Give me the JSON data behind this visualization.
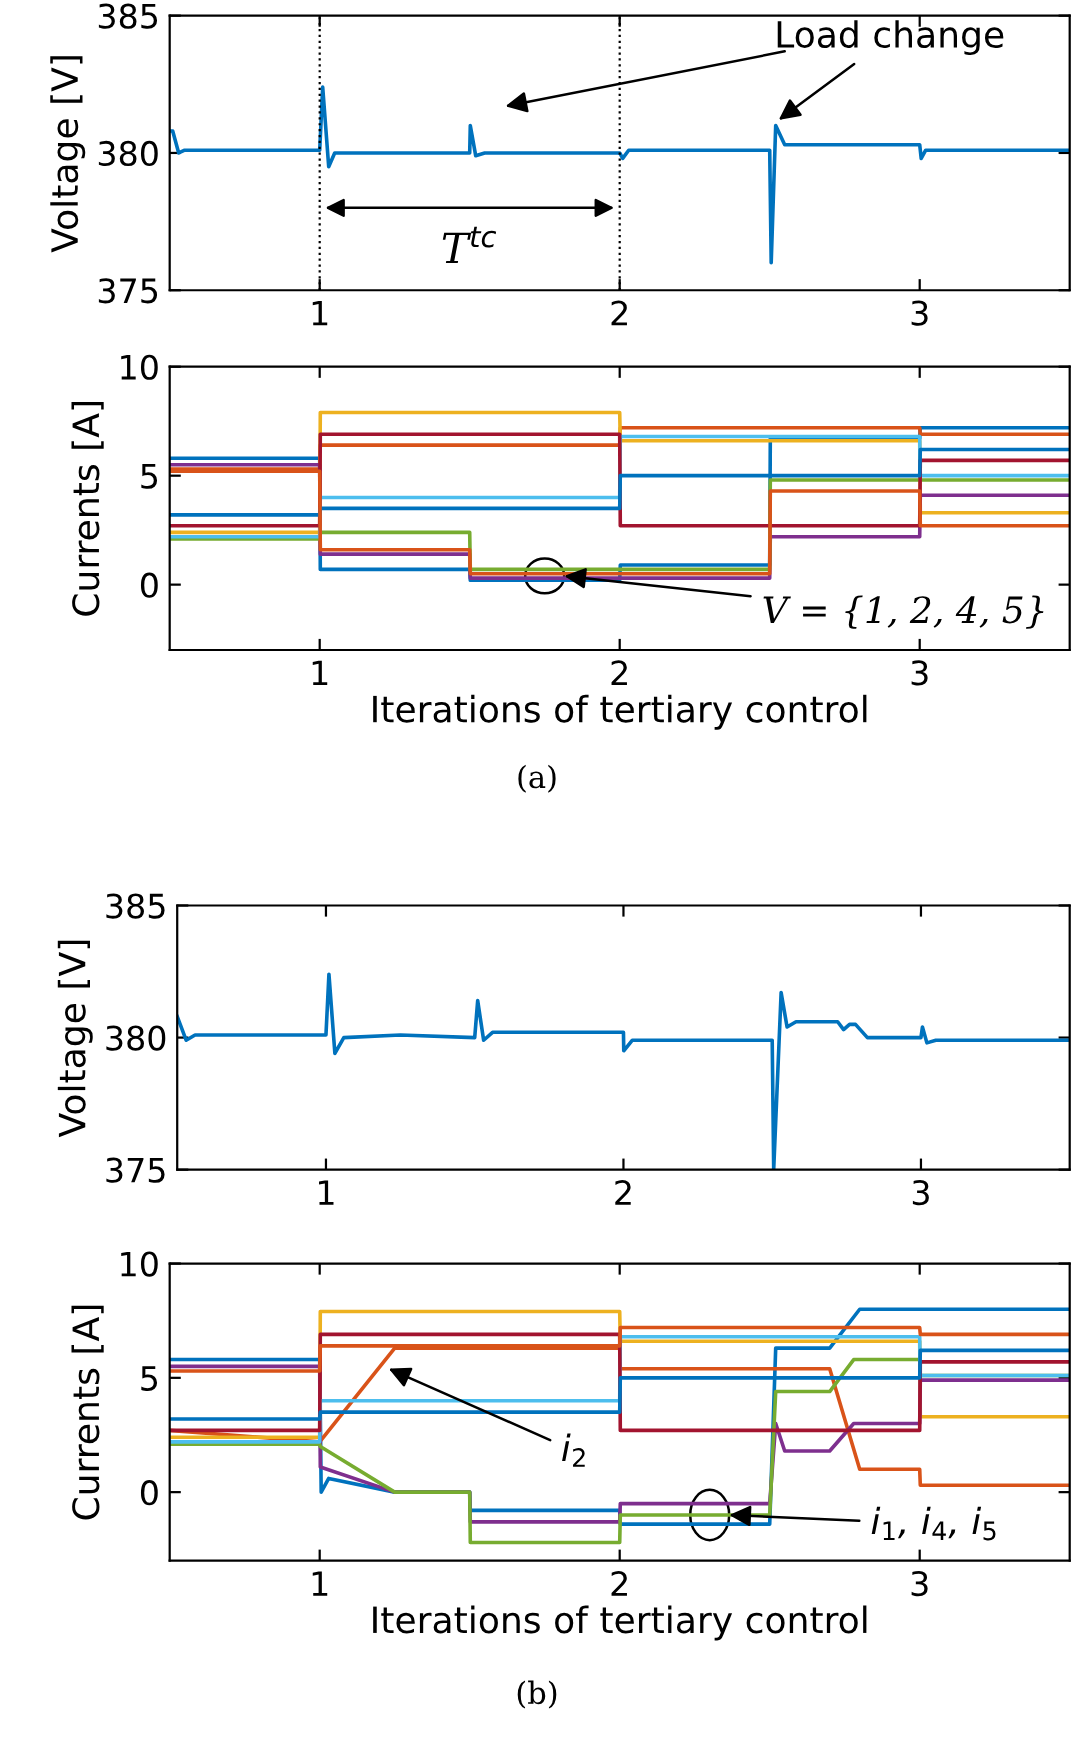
{
  "chart_data": [
    {
      "type": "line",
      "ylabel": "Voltage [V]",
      "xlim": [
        0.5,
        3.5
      ],
      "xticks": [
        1,
        2,
        3
      ],
      "ylim": [
        375,
        385
      ],
      "yticks": [
        375,
        380,
        385
      ],
      "grid": false,
      "legend": false,
      "x": [
        0.5,
        0.51,
        0.53,
        0.55,
        1.0,
        1.01,
        1.03,
        1.05,
        1.5,
        1.502,
        1.52,
        1.55,
        2.0,
        2.01,
        2.03,
        2.5,
        2.505,
        2.52,
        2.55,
        3.0,
        3.005,
        3.02,
        3.5
      ],
      "series": [
        {
          "color": "#0072bd",
          "values": [
            380.8,
            380.8,
            380.0,
            380.1,
            380.1,
            382.4,
            379.5,
            380.0,
            380.0,
            381.0,
            379.9,
            380.0,
            380.0,
            379.8,
            380.1,
            380.1,
            376.0,
            381.0,
            380.3,
            380.3,
            379.8,
            380.1,
            380.1
          ]
        }
      ],
      "ref_lines": [
        {
          "axis": "x",
          "value": 1,
          "color": "#000000",
          "line_style": "dotted"
        },
        {
          "axis": "x",
          "value": 2,
          "color": "#000000",
          "line_style": "dotted"
        }
      ],
      "annotations": [
        {
          "text": "Load change",
          "x": 2.53,
          "y": 381.2
        },
        "T$^{tc}$"
      ]
    },
    {
      "type": "line",
      "ylabel": "Currents [A]",
      "xlabel": "Iterations of tertiary control",
      "xlim": [
        0.5,
        3.5
      ],
      "xticks": [
        1,
        2,
        3
      ],
      "ylim": [
        -3,
        10
      ],
      "yticks": [
        0,
        5,
        10
      ],
      "grid": false,
      "legend": false,
      "x": [
        0.5,
        1,
        1.002,
        1.5,
        1.502,
        2,
        2.002,
        2.5,
        2.502,
        3,
        3.002,
        3.5
      ],
      "series": [
        {
          "color": "#0072bd",
          "values": [
            5.8,
            5.8,
            0.7,
            0.7,
            0.2,
            0.2,
            0.9,
            0.9,
            6.7,
            6.7,
            7.2,
            7.2
          ]
        },
        {
          "color": "#d95319",
          "values": [
            5.3,
            5.3,
            6.4,
            6.4,
            6.4,
            6.4,
            7.2,
            7.2,
            7.2,
            7.2,
            6.9,
            6.9
          ]
        },
        {
          "color": "#edb120",
          "values": [
            2.4,
            2.4,
            7.9,
            7.9,
            7.9,
            7.9,
            6.6,
            6.6,
            6.6,
            6.6,
            3.3,
            3.3
          ]
        },
        {
          "color": "#7e2f8e",
          "values": [
            5.5,
            5.5,
            1.4,
            1.4,
            0.3,
            0.3,
            0.3,
            0.3,
            2.2,
            2.2,
            4.1,
            4.1
          ]
        },
        {
          "color": "#77ac30",
          "values": [
            2.1,
            2.1,
            2.4,
            2.4,
            0.7,
            0.7,
            0.7,
            0.7,
            4.8,
            4.8,
            4.8,
            4.8
          ]
        },
        {
          "color": "#4dbeee",
          "values": [
            2.2,
            2.2,
            4.0,
            4.0,
            4.0,
            4.0,
            6.8,
            6.8,
            6.8,
            6.8,
            5.0,
            5.0
          ]
        },
        {
          "color": "#a2142f",
          "values": [
            2.7,
            2.7,
            6.9,
            6.9,
            6.9,
            6.9,
            2.7,
            2.7,
            2.7,
            2.7,
            5.7,
            5.7
          ]
        },
        {
          "color": "#0072bd",
          "values": [
            3.2,
            3.2,
            3.5,
            3.5,
            3.5,
            3.5,
            5.0,
            5.0,
            5.0,
            5.0,
            6.2,
            6.2
          ]
        },
        {
          "color": "#d95319",
          "values": [
            5.2,
            5.2,
            1.6,
            1.6,
            0.5,
            0.5,
            0.5,
            0.5,
            4.3,
            4.3,
            2.7,
            2.7
          ]
        }
      ],
      "annotations": [
        {
          "text": "V = {1, 2, 4, 5}",
          "x": 1.815,
          "y": 0.4
        },
        "(a)"
      ]
    },
    {
      "type": "line",
      "ylabel": "Voltage [V]",
      "xlim": [
        0.5,
        3.5
      ],
      "xticks": [
        1,
        2,
        3
      ],
      "ylim": [
        375,
        385
      ],
      "yticks": [
        375,
        380,
        385
      ],
      "grid": false,
      "legend": false,
      "x": [
        0.5,
        0.53,
        0.56,
        1.0,
        1.01,
        1.03,
        1.06,
        1.25,
        1.5,
        1.51,
        1.53,
        1.56,
        2.0,
        2.001,
        2.03,
        2.5,
        2.505,
        2.53,
        2.55,
        2.58,
        2.72,
        2.74,
        2.76,
        2.78,
        2.82,
        3.0,
        3.005,
        3.02,
        3.05,
        3.5
      ],
      "series": [
        {
          "color": "#0072bd",
          "values": [
            380.8,
            379.9,
            380.1,
            380.1,
            382.4,
            379.4,
            380.0,
            380.1,
            380.0,
            381.4,
            379.9,
            380.2,
            380.2,
            379.5,
            379.9,
            379.9,
            375.0,
            381.7,
            380.4,
            380.6,
            380.6,
            380.3,
            380.5,
            380.5,
            380.0,
            380.0,
            380.4,
            379.8,
            379.9,
            379.9
          ]
        }
      ]
    },
    {
      "type": "line",
      "ylabel": "Currents [A]",
      "xlabel": "Iterations of tertiary control",
      "xlim": [
        0.5,
        3.5
      ],
      "xticks": [
        1,
        2,
        3
      ],
      "ylim": [
        -3,
        10
      ],
      "yticks": [
        0,
        5,
        10
      ],
      "grid": false,
      "legend": false,
      "x": [
        0.5,
        1,
        1.002,
        1.5,
        1.502,
        2,
        2.002,
        2.5,
        2.502,
        3,
        3.002,
        3.5
      ],
      "series": [
        {
          "color": "#0072bd",
          "x": [
            0.5,
            1,
            1.005,
            1.03,
            1.25,
            1.5,
            1.502,
            2,
            2.002,
            2.5,
            2.52,
            2.7,
            2.8,
            3.5
          ],
          "values": [
            5.8,
            5.8,
            0,
            0.6,
            0,
            0,
            -0.8,
            -0.8,
            -1.4,
            -1.4,
            6.3,
            6.3,
            8.0,
            8.0
          ]
        },
        {
          "color": "#d95319",
          "x": [
            0.5,
            1,
            1.25,
            2,
            2.002,
            2.7,
            2.8,
            3,
            3.002,
            3.5
          ],
          "values": [
            2.7,
            2.2,
            6.3,
            6.3,
            5.4,
            5.4,
            1.0,
            1.0,
            0.3,
            0.3
          ]
        },
        {
          "color": "#edb120",
          "values": [
            2.4,
            2.4,
            7.9,
            7.9,
            7.9,
            7.9,
            6.6,
            6.6,
            6.6,
            6.6,
            3.3,
            3.3
          ]
        },
        {
          "color": "#7e2f8e",
          "x": [
            0.5,
            1,
            1.002,
            1.25,
            1.5,
            1.502,
            2,
            2.002,
            2.5,
            2.52,
            2.55,
            2.7,
            2.78,
            3,
            3.002,
            3.5
          ],
          "values": [
            5.5,
            5.5,
            1.1,
            0,
            0,
            -1.3,
            -1.3,
            -0.5,
            -0.5,
            3.0,
            1.8,
            1.8,
            3.0,
            3.0,
            4.9,
            4.9
          ]
        },
        {
          "color": "#77ac30",
          "x": [
            0.5,
            1,
            1.002,
            1.25,
            1.5,
            1.502,
            2,
            2.002,
            2.5,
            2.52,
            2.7,
            2.78,
            3,
            3.002,
            3.5
          ],
          "values": [
            2.1,
            2.1,
            2.0,
            0,
            0,
            -2.2,
            -2.2,
            -1.0,
            -1.0,
            4.4,
            4.4,
            5.8,
            5.8,
            5.1,
            5.1
          ]
        },
        {
          "color": "#4dbeee",
          "values": [
            2.2,
            2.2,
            4.0,
            4.0,
            4.0,
            4.0,
            6.8,
            6.8,
            6.8,
            6.8,
            5.1,
            5.1
          ]
        },
        {
          "color": "#a2142f",
          "values": [
            2.7,
            2.7,
            6.9,
            6.9,
            6.9,
            6.9,
            2.7,
            2.7,
            2.7,
            2.7,
            5.7,
            5.7
          ]
        },
        {
          "color": "#0072bd",
          "values": [
            3.2,
            3.2,
            3.5,
            3.5,
            3.5,
            3.5,
            5.0,
            5.0,
            5.0,
            5.0,
            6.2,
            6.2
          ]
        },
        {
          "color": "#d95319",
          "values": [
            5.3,
            5.3,
            6.4,
            6.4,
            6.4,
            6.4,
            7.2,
            7.2,
            7.2,
            7.2,
            6.9,
            6.9
          ]
        }
      ],
      "annotations": [
        {
          "text": "i$_{2}$",
          "x": 1.23,
          "y": 5.4
        },
        {
          "text": "i$_{1}$, i$_{4}$, i$_{5}$",
          "x": 2.365,
          "y": -1.0
        },
        "(b)"
      ]
    }
  ]
}
